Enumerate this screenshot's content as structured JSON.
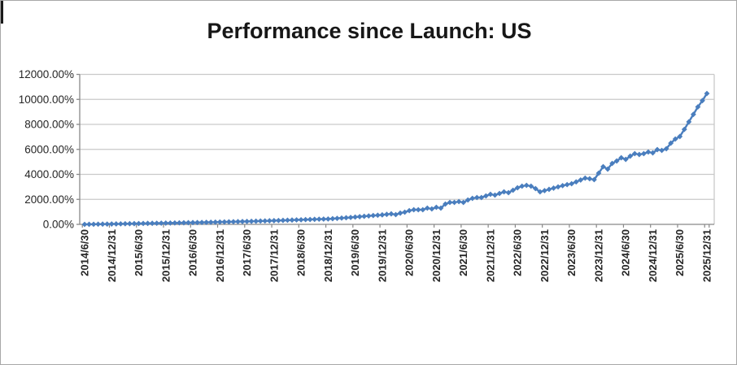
{
  "window": {
    "background": "#ffffff",
    "frame_border_color": "#a8a8a8"
  },
  "chart": {
    "title": "Performance since Launch: US",
    "title_color": "#171717",
    "series_color": "#4a7ebe",
    "gridline_color": "#c9c9c9",
    "axis_color": "#898989",
    "tick_label_color": "#262626"
  },
  "chart_data": {
    "type": "line",
    "title": "Performance since Launch: US",
    "legend": "none",
    "grid": "horizontal",
    "marker": "diamond",
    "ylabel": "",
    "xlabel": "",
    "ylim": [
      0,
      12000
    ],
    "y_step_pct": 2000,
    "y_tick_labels": [
      "0.00%",
      "2000.00%",
      "4000.00%",
      "6000.00%",
      "8000.00%",
      "10000.00%",
      "12000.00%"
    ],
    "x_tick_labels": [
      "2014/6/30",
      "2014/12/31",
      "2015/6/30",
      "2015/12/31",
      "2016/6/30",
      "2016/12/31",
      "2017/6/30",
      "2017/12/31",
      "2018/6/30",
      "2018/12/31",
      "2019/6/30",
      "2019/12/31",
      "2020/6/30",
      "2020/12/31",
      "2021/6/30",
      "2021/12/31",
      "2022/6/30",
      "2022/12/31",
      "2023/6/30",
      "2023/12/31",
      "2024/6/30",
      "2024/12/31",
      "2025/6/30",
      "2025/12/31"
    ],
    "x_start": "2014/6/30",
    "x_freq": "monthly",
    "x_label_every_n_points": 6,
    "values_pct": [
      0,
      5,
      10,
      15,
      20,
      25,
      30,
      36,
      42,
      48,
      54,
      60,
      66,
      72,
      78,
      84,
      90,
      96,
      102,
      108,
      114,
      120,
      127,
      134,
      141,
      148,
      155,
      162,
      170,
      178,
      186,
      194,
      202,
      210,
      219,
      228,
      237,
      246,
      256,
      266,
      276,
      287,
      298,
      309,
      320,
      332,
      344,
      356,
      368,
      380,
      392,
      404,
      416,
      424,
      430,
      455,
      480,
      505,
      530,
      555,
      585,
      615,
      645,
      675,
      705,
      730,
      760,
      800,
      840,
      780,
      900,
      976,
      1100,
      1170,
      1170,
      1170,
      1300,
      1236,
      1365,
      1300,
      1626,
      1756,
      1756,
      1820,
      1756,
      1950,
      2080,
      2145,
      2145,
      2275,
      2406,
      2340,
      2470,
      2600,
      2535,
      2730,
      2925,
      3055,
      3120,
      3055,
      2860,
      2600,
      2700,
      2800,
      2900,
      3000,
      3100,
      3180,
      3250,
      3400,
      3550,
      3700,
      3650,
      3575,
      4100,
      4620,
      4420,
      4880,
      5070,
      5330,
      5200,
      5460,
      5660,
      5590,
      5660,
      5790,
      5720,
      5980,
      5920,
      6050,
      6500,
      6830,
      7030,
      7600,
      8200,
      8800,
      9400,
      9900,
      10470
    ]
  }
}
